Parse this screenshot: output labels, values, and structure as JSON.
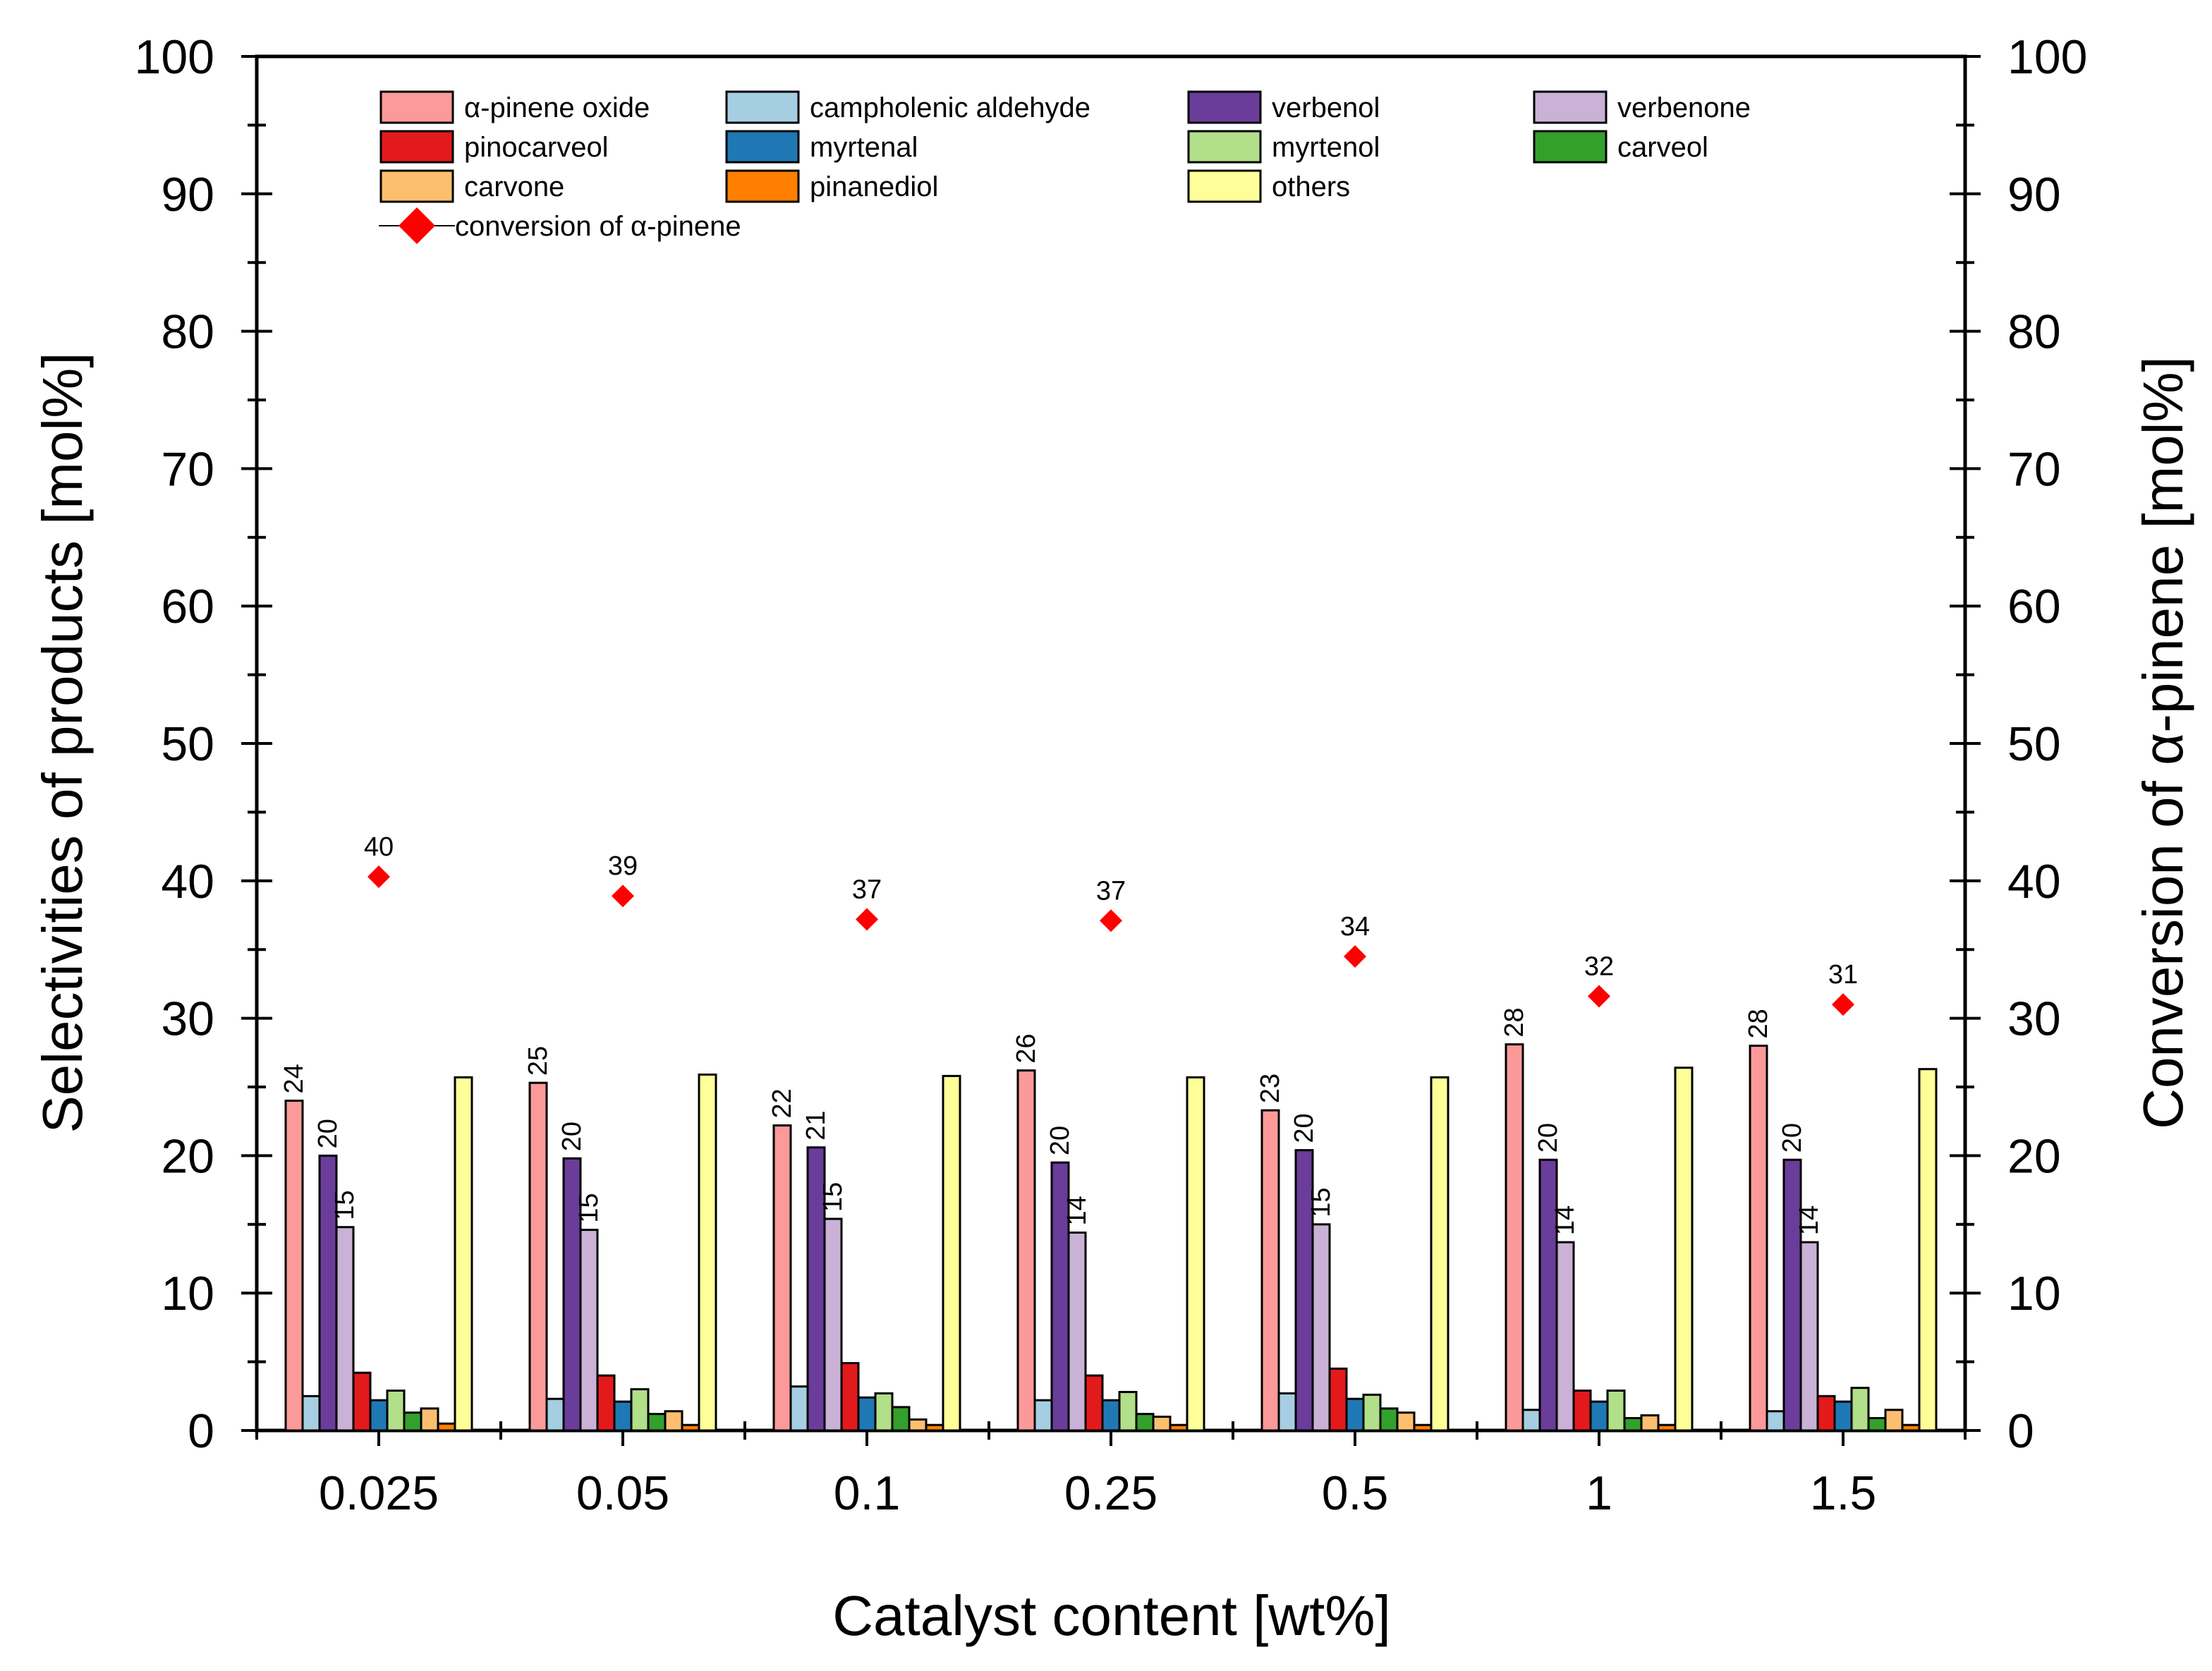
{
  "chart_data": {
    "type": "bar",
    "xlabel": "Catalyst content [wt%]",
    "ylabel": "Selectivities of products [mol%]",
    "y2label": "Conversion of α-pinene [mol%]",
    "ylim": [
      0,
      100
    ],
    "y2lim": [
      0,
      100
    ],
    "yticks": [
      "0",
      "10",
      "20",
      "30",
      "40",
      "50",
      "60",
      "70",
      "80",
      "90",
      "100"
    ],
    "categories": [
      "0.025",
      "0.05",
      "0.1",
      "0.25",
      "0.5",
      "1",
      "1.5"
    ],
    "legend_position": "top",
    "series": [
      {
        "name": "α-pinene oxide",
        "color": "#fb9a99",
        "values": [
          24,
          25.3,
          22.2,
          26.2,
          23.3,
          28.1,
          28
        ],
        "labels": [
          "24",
          "25",
          "22",
          "26",
          "23",
          "28",
          "28"
        ]
      },
      {
        "name": "campholenic aldehyde",
        "color": "#a6cee3",
        "values": [
          2.5,
          2.3,
          3.2,
          2.2,
          2.7,
          1.5,
          1.4
        ]
      },
      {
        "name": "verbenol",
        "color": "#6a3d9a",
        "values": [
          20,
          19.8,
          20.6,
          19.5,
          20.4,
          19.7,
          19.7
        ],
        "labels": [
          "20",
          "20",
          "21",
          "20",
          "20",
          "20",
          "20"
        ]
      },
      {
        "name": "verbenone",
        "color": "#cab2d6",
        "values": [
          14.8,
          14.6,
          15.4,
          14.4,
          15,
          13.7,
          13.7
        ],
        "labels": [
          "15",
          "15",
          "15",
          "14",
          "15",
          "14",
          "14"
        ]
      },
      {
        "name": "pinocarveol",
        "color": "#e31a1c",
        "values": [
          4.2,
          4,
          4.9,
          4,
          4.5,
          2.9,
          2.5
        ]
      },
      {
        "name": "myrtenal",
        "color": "#1f78b4",
        "values": [
          2.2,
          2.1,
          2.4,
          2.2,
          2.3,
          2.1,
          2.1
        ]
      },
      {
        "name": "myrtenol",
        "color": "#b2df8a",
        "values": [
          2.9,
          3,
          2.7,
          2.8,
          2.6,
          2.9,
          3.1
        ]
      },
      {
        "name": "carveol",
        "color": "#33a02c",
        "values": [
          1.3,
          1.2,
          1.7,
          1.2,
          1.6,
          0.9,
          0.9
        ]
      },
      {
        "name": "carvone",
        "color": "#fdbf6f",
        "values": [
          1.6,
          1.4,
          0.8,
          1,
          1.3,
          1.1,
          1.5
        ]
      },
      {
        "name": "pinanediol",
        "color": "#ff7f00",
        "values": [
          0.5,
          0.4,
          0.4,
          0.4,
          0.4,
          0.4,
          0.4
        ]
      },
      {
        "name": "others",
        "color": "#ffff99",
        "values": [
          25.7,
          25.9,
          25.8,
          25.7,
          25.7,
          26.4,
          26.3
        ]
      }
    ],
    "conversion": {
      "name": "conversion of α-pinene",
      "color": "#ff0000",
      "values": [
        40.3,
        38.9,
        37.2,
        37.1,
        34.5,
        31.6,
        31
      ],
      "labels": [
        "40",
        "39",
        "37",
        "37",
        "34",
        "32",
        "31"
      ]
    }
  }
}
